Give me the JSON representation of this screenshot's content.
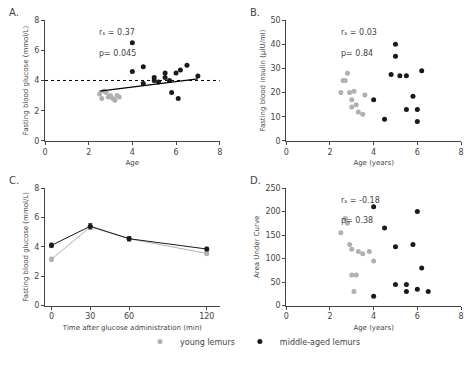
{
  "chart_data": [
    {
      "type": "scatter",
      "title": "A.",
      "x_label": "Age",
      "y_label": "Fasting blood glucose (mmol/L)",
      "xlim": [
        0,
        8
      ],
      "ylim": [
        0,
        8
      ],
      "xticks": [
        0,
        2,
        4,
        6,
        8
      ],
      "yticks": [
        0,
        2,
        4,
        6,
        8
      ],
      "grid": false,
      "legend": "bottom",
      "series": [
        {
          "name": "young lemurs",
          "color": "#b0b0b0",
          "marker": "circle",
          "x": [
            2.5,
            2.6,
            2.7,
            2.8,
            2.9,
            3.0,
            3.1,
            3.2,
            3.3,
            3.4
          ],
          "values": [
            3.1,
            2.8,
            3.3,
            3.2,
            2.9,
            3.0,
            2.8,
            2.7,
            3.0,
            2.9
          ]
        },
        {
          "name": "middle-aged lemurs",
          "color": "#1a1a1a",
          "marker": "circle",
          "x": [
            4.0,
            4.0,
            4.5,
            4.5,
            5.0,
            5.0,
            5.2,
            5.5,
            5.5,
            5.7,
            5.8,
            6.0,
            6.1,
            6.2,
            6.5,
            7.0
          ],
          "values": [
            6.5,
            4.6,
            4.9,
            3.8,
            4.2,
            4.0,
            3.9,
            4.2,
            4.5,
            4.0,
            3.2,
            4.5,
            2.8,
            4.7,
            5.0,
            4.3
          ]
        }
      ],
      "trend_line": {
        "x": [
          2.5,
          7.0
        ],
        "y": [
          3.3,
          4.1
        ],
        "color": "#000000"
      },
      "reference_line": {
        "y": 4.0,
        "color": "#000000",
        "line_style": "dotted"
      },
      "annotations": [
        "rₛ = 0.37",
        "p= 0.045"
      ]
    },
    {
      "type": "scatter",
      "title": "B.",
      "x_label": "Age (years)",
      "y_label": "Fasting blood insulin (μIU/ml)",
      "xlim": [
        0,
        8
      ],
      "ylim": [
        0,
        50
      ],
      "xticks": [
        0,
        2,
        4,
        6,
        8
      ],
      "yticks": [
        0,
        10,
        20,
        30,
        40,
        50
      ],
      "grid": false,
      "series": [
        {
          "name": "young lemurs",
          "color": "#b0b0b0",
          "marker": "circle",
          "x": [
            2.5,
            2.6,
            2.7,
            2.8,
            2.9,
            3.0,
            3.0,
            3.1,
            3.2,
            3.3,
            3.5,
            3.6
          ],
          "values": [
            20.0,
            25.0,
            25.0,
            28.0,
            20.0,
            17.0,
            14.0,
            20.5,
            15.0,
            12.0,
            11.0,
            19.0
          ]
        },
        {
          "name": "middle-aged lemurs",
          "color": "#1a1a1a",
          "marker": "circle",
          "x": [
            4.0,
            4.5,
            4.8,
            5.0,
            5.0,
            5.2,
            5.5,
            5.5,
            5.8,
            6.0,
            6.0,
            6.2
          ],
          "values": [
            17.0,
            9.0,
            27.5,
            40.0,
            35.0,
            27.0,
            27.0,
            13.0,
            18.5,
            8.0,
            13.0,
            29.0
          ]
        }
      ],
      "annotations": [
        "rₛ = 0.03",
        "p= 0.84"
      ]
    },
    {
      "type": "line",
      "title": "C.",
      "x_label": "Time after glucose administration (min)",
      "y_label": "Fasting blood glucose (mmol/L)",
      "xlim": [
        -5,
        130
      ],
      "ylim": [
        0,
        8
      ],
      "xticks": [
        0,
        30,
        60,
        120
      ],
      "yticks": [
        0,
        2,
        4,
        6,
        8
      ],
      "grid": false,
      "x": [
        0,
        30,
        60,
        120
      ],
      "series": [
        {
          "name": "young lemurs",
          "color": "#b0b0b0",
          "marker": "circle",
          "values": [
            3.15,
            5.35,
            4.55,
            3.55
          ],
          "errors": [
            0.15,
            0.18,
            0.15,
            0.15
          ]
        },
        {
          "name": "middle-aged lemurs",
          "color": "#1a1a1a",
          "marker": "circle",
          "values": [
            4.1,
            5.4,
            4.55,
            3.85
          ],
          "errors": [
            0.15,
            0.18,
            0.15,
            0.12
          ]
        }
      ]
    },
    {
      "type": "scatter",
      "title": "D.",
      "x_label": "Age (years)",
      "y_label": "Area Under Curve",
      "xlim": [
        0,
        8
      ],
      "ylim": [
        0,
        250
      ],
      "xticks": [
        0,
        2,
        4,
        6,
        8
      ],
      "yticks": [
        0,
        50,
        100,
        150,
        200,
        250
      ],
      "grid": false,
      "series": [
        {
          "name": "young lemurs",
          "color": "#b0b0b0",
          "marker": "circle",
          "x": [
            2.5,
            2.7,
            2.8,
            2.9,
            3.0,
            3.0,
            3.1,
            3.2,
            3.3,
            3.5,
            3.8,
            4.0
          ],
          "values": [
            155.0,
            185.0,
            175.0,
            130.0,
            65.0,
            120.0,
            30.0,
            65.0,
            115.0,
            110.0,
            115.0,
            95.0
          ]
        },
        {
          "name": "middle-aged lemurs",
          "color": "#1a1a1a",
          "marker": "circle",
          "x": [
            4.0,
            4.0,
            4.5,
            5.0,
            5.0,
            5.5,
            5.5,
            5.8,
            6.0,
            6.0,
            6.2,
            6.5
          ],
          "values": [
            210.0,
            20.0,
            165.0,
            125.0,
            45.0,
            45.0,
            30.0,
            130.0,
            35.0,
            200.0,
            80.0,
            30.0
          ]
        }
      ],
      "annotations": [
        "rₛ = -0.18",
        "p= 0.38"
      ]
    }
  ]
}
